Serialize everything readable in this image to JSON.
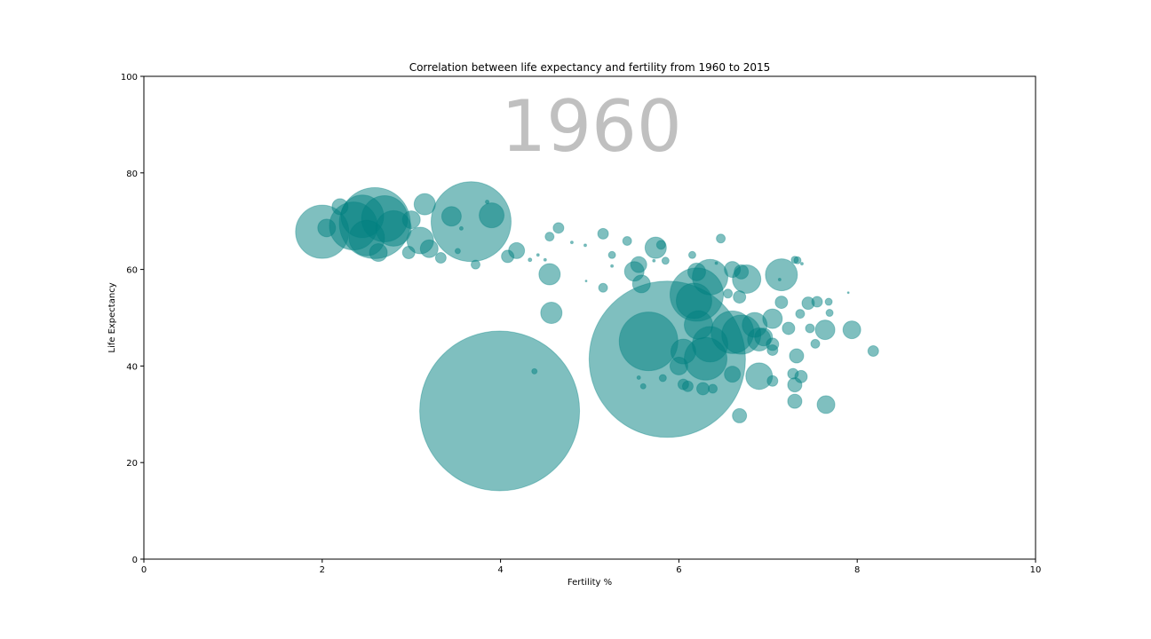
{
  "chart_data": {
    "type": "scatter",
    "title": "Correlation between life expectancy and fertility from 1960 to 2015",
    "xlabel": "Fertility %",
    "ylabel": "Life Expectancy",
    "xlim": [
      0,
      10
    ],
    "ylim": [
      0,
      100
    ],
    "x_ticks": [
      "0",
      "2",
      "4",
      "6",
      "8",
      "10"
    ],
    "y_ticks": [
      "0",
      "20",
      "40",
      "60",
      "80",
      "100"
    ],
    "annotation": "1960",
    "grid": false,
    "marker_color": "#008080",
    "marker_alpha": 0.5,
    "points": [
      {
        "x": 3.99,
        "y": 30.7,
        "r": 90
      },
      {
        "x": 5.87,
        "y": 41.4,
        "r": 88
      },
      {
        "x": 2.59,
        "y": 69.6,
        "r": 40
      },
      {
        "x": 3.67,
        "y": 69.9,
        "r": 45
      },
      {
        "x": 2.0,
        "y": 67.8,
        "r": 30
      },
      {
        "x": 2.35,
        "y": 69.0,
        "r": 27
      },
      {
        "x": 2.45,
        "y": 71.0,
        "r": 24
      },
      {
        "x": 2.7,
        "y": 70.5,
        "r": 26
      },
      {
        "x": 2.8,
        "y": 68.5,
        "r": 20
      },
      {
        "x": 2.5,
        "y": 66.5,
        "r": 20
      },
      {
        "x": 3.1,
        "y": 66.0,
        "r": 15
      },
      {
        "x": 3.15,
        "y": 73.5,
        "r": 12
      },
      {
        "x": 2.2,
        "y": 73.0,
        "r": 9
      },
      {
        "x": 2.05,
        "y": 68.6,
        "r": 10
      },
      {
        "x": 2.63,
        "y": 63.5,
        "r": 10
      },
      {
        "x": 3.2,
        "y": 64.3,
        "r": 10
      },
      {
        "x": 3.0,
        "y": 70.3,
        "r": 10
      },
      {
        "x": 3.45,
        "y": 71.0,
        "r": 11
      },
      {
        "x": 3.9,
        "y": 71.2,
        "r": 14
      },
      {
        "x": 2.97,
        "y": 63.5,
        "r": 7
      },
      {
        "x": 3.33,
        "y": 62.4,
        "r": 6
      },
      {
        "x": 3.72,
        "y": 61.0,
        "r": 5
      },
      {
        "x": 4.08,
        "y": 62.7,
        "r": 7
      },
      {
        "x": 4.18,
        "y": 63.9,
        "r": 9
      },
      {
        "x": 3.85,
        "y": 74.0,
        "r": 2
      },
      {
        "x": 4.55,
        "y": 59.0,
        "r": 12
      },
      {
        "x": 4.57,
        "y": 51.0,
        "r": 12
      },
      {
        "x": 4.38,
        "y": 38.9,
        "r": 3
      },
      {
        "x": 4.55,
        "y": 66.8,
        "r": 5
      },
      {
        "x": 4.65,
        "y": 68.6,
        "r": 6
      },
      {
        "x": 5.15,
        "y": 67.4,
        "r": 6
      },
      {
        "x": 5.42,
        "y": 65.9,
        "r": 5
      },
      {
        "x": 5.15,
        "y": 56.2,
        "r": 5
      },
      {
        "x": 5.25,
        "y": 63.0,
        "r": 4
      },
      {
        "x": 5.55,
        "y": 61.0,
        "r": 9
      },
      {
        "x": 5.5,
        "y": 59.6,
        "r": 11
      },
      {
        "x": 5.58,
        "y": 57.0,
        "r": 10
      },
      {
        "x": 5.74,
        "y": 64.5,
        "r": 12
      },
      {
        "x": 5.8,
        "y": 65.1,
        "r": 5
      },
      {
        "x": 5.66,
        "y": 45.1,
        "r": 33
      },
      {
        "x": 6.2,
        "y": 54.8,
        "r": 30
      },
      {
        "x": 6.35,
        "y": 58.4,
        "r": 20
      },
      {
        "x": 6.17,
        "y": 53.5,
        "r": 20
      },
      {
        "x": 6.2,
        "y": 59.5,
        "r": 10
      },
      {
        "x": 6.6,
        "y": 47.0,
        "r": 24
      },
      {
        "x": 6.7,
        "y": 46.5,
        "r": 22
      },
      {
        "x": 6.35,
        "y": 44.5,
        "r": 20
      },
      {
        "x": 6.3,
        "y": 41.5,
        "r": 24
      },
      {
        "x": 6.05,
        "y": 43.0,
        "r": 14
      },
      {
        "x": 6.0,
        "y": 40.0,
        "r": 10
      },
      {
        "x": 6.22,
        "y": 48.5,
        "r": 16
      },
      {
        "x": 6.76,
        "y": 58.0,
        "r": 16
      },
      {
        "x": 6.85,
        "y": 48.5,
        "r": 14
      },
      {
        "x": 6.9,
        "y": 45.5,
        "r": 13
      },
      {
        "x": 6.95,
        "y": 46.0,
        "r": 10
      },
      {
        "x": 7.15,
        "y": 58.9,
        "r": 18
      },
      {
        "x": 7.05,
        "y": 49.8,
        "r": 11
      },
      {
        "x": 6.9,
        "y": 37.9,
        "r": 15
      },
      {
        "x": 6.6,
        "y": 38.3,
        "r": 9
      },
      {
        "x": 6.6,
        "y": 60.0,
        "r": 9
      },
      {
        "x": 6.7,
        "y": 59.5,
        "r": 8
      },
      {
        "x": 6.68,
        "y": 54.3,
        "r": 7
      },
      {
        "x": 6.68,
        "y": 29.7,
        "r": 8
      },
      {
        "x": 6.47,
        "y": 66.4,
        "r": 5
      },
      {
        "x": 6.55,
        "y": 55.0,
        "r": 5
      },
      {
        "x": 6.05,
        "y": 36.2,
        "r": 6
      },
      {
        "x": 6.1,
        "y": 35.8,
        "r": 6
      },
      {
        "x": 6.27,
        "y": 35.3,
        "r": 7
      },
      {
        "x": 6.38,
        "y": 35.3,
        "r": 5
      },
      {
        "x": 7.05,
        "y": 44.5,
        "r": 7
      },
      {
        "x": 7.05,
        "y": 43.3,
        "r": 6
      },
      {
        "x": 7.05,
        "y": 36.9,
        "r": 6
      },
      {
        "x": 7.15,
        "y": 53.2,
        "r": 7
      },
      {
        "x": 7.23,
        "y": 47.8,
        "r": 7
      },
      {
        "x": 7.32,
        "y": 42.1,
        "r": 8
      },
      {
        "x": 7.28,
        "y": 38.4,
        "r": 6
      },
      {
        "x": 7.3,
        "y": 36.1,
        "r": 8
      },
      {
        "x": 7.37,
        "y": 37.8,
        "r": 7
      },
      {
        "x": 7.3,
        "y": 32.7,
        "r": 8
      },
      {
        "x": 7.36,
        "y": 50.8,
        "r": 5
      },
      {
        "x": 7.45,
        "y": 53.0,
        "r": 7
      },
      {
        "x": 7.55,
        "y": 53.3,
        "r": 6
      },
      {
        "x": 7.47,
        "y": 47.8,
        "r": 5
      },
      {
        "x": 7.53,
        "y": 44.6,
        "r": 5
      },
      {
        "x": 7.64,
        "y": 47.5,
        "r": 11
      },
      {
        "x": 7.69,
        "y": 51.0,
        "r": 4
      },
      {
        "x": 7.68,
        "y": 53.3,
        "r": 4
      },
      {
        "x": 7.65,
        "y": 32.0,
        "r": 10
      },
      {
        "x": 7.94,
        "y": 47.5,
        "r": 10
      },
      {
        "x": 8.18,
        "y": 43.1,
        "r": 6
      },
      {
        "x": 7.3,
        "y": 62.0,
        "r": 4
      },
      {
        "x": 7.33,
        "y": 61.9,
        "r": 4
      },
      {
        "x": 5.55,
        "y": 37.6,
        "r": 2
      },
      {
        "x": 5.6,
        "y": 35.8,
        "r": 3
      },
      {
        "x": 5.82,
        "y": 37.5,
        "r": 4
      },
      {
        "x": 6.15,
        "y": 63.0,
        "r": 4
      },
      {
        "x": 5.85,
        "y": 61.8,
        "r": 4
      },
      {
        "x": 3.56,
        "y": 68.5,
        "r": 2
      },
      {
        "x": 3.52,
        "y": 63.8,
        "r": 3
      },
      {
        "x": 4.8,
        "y": 65.6,
        "r": 1.5
      },
      {
        "x": 4.95,
        "y": 65.0,
        "r": 1.5
      },
      {
        "x": 5.25,
        "y": 60.7,
        "r": 1.5
      },
      {
        "x": 4.96,
        "y": 57.6,
        "r": 1
      },
      {
        "x": 4.42,
        "y": 63.0,
        "r": 1.5
      },
      {
        "x": 4.5,
        "y": 62.0,
        "r": 1.5
      },
      {
        "x": 4.33,
        "y": 62.0,
        "r": 2
      },
      {
        "x": 5.72,
        "y": 61.8,
        "r": 1.5
      },
      {
        "x": 6.42,
        "y": 61.3,
        "r": 1.5
      },
      {
        "x": 7.9,
        "y": 55.2,
        "r": 1
      },
      {
        "x": 7.13,
        "y": 57.9,
        "r": 1.5
      },
      {
        "x": 7.38,
        "y": 61.2,
        "r": 1.5
      }
    ]
  }
}
